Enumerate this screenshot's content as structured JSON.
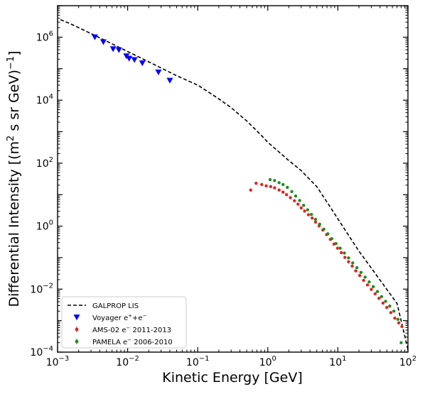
{
  "chart_data": {
    "type": "scatter",
    "xlabel": "Kinetic Energy [GeV]",
    "ylabel_parts": [
      "Differential Intensity [(m",
      "2",
      " s sr GeV)",
      "−1",
      "]"
    ],
    "x_scale": "log",
    "y_scale": "log",
    "xlim": [
      0.001,
      100
    ],
    "ylim": [
      0.0001,
      10000000
    ],
    "grid": false,
    "legend_position": "lower-left",
    "x_ticks": [
      {
        "value": 0.001,
        "base": "10",
        "exp": "−3"
      },
      {
        "value": 0.01,
        "base": "10",
        "exp": "−2"
      },
      {
        "value": 0.1,
        "base": "10",
        "exp": "−1"
      },
      {
        "value": 1,
        "base": "10",
        "exp": "0"
      },
      {
        "value": 10,
        "base": "10",
        "exp": "1"
      },
      {
        "value": 100,
        "base": "10",
        "exp": "2"
      }
    ],
    "y_ticks": [
      {
        "value": 0.0001,
        "base": "10",
        "exp": "−4"
      },
      {
        "value": 0.01,
        "base": "10",
        "exp": "−2"
      },
      {
        "value": 1,
        "base": "10",
        "exp": "0"
      },
      {
        "value": 100,
        "base": "10",
        "exp": "2"
      },
      {
        "value": 10000,
        "base": "10",
        "exp": "4"
      },
      {
        "value": 1000000,
        "base": "10",
        "exp": "6"
      }
    ],
    "series": [
      {
        "name": "GALPROP LIS",
        "kind": "line",
        "style": "dashed",
        "color": "#000000",
        "points": [
          [
            0.0011,
            3600000
          ],
          [
            0.0015,
            2700000
          ],
          [
            0.002,
            2000000
          ],
          [
            0.003,
            1300000
          ],
          [
            0.005,
            750000
          ],
          [
            0.01,
            350000
          ],
          [
            0.02,
            165000
          ],
          [
            0.05,
            60000
          ],
          [
            0.1,
            30000
          ],
          [
            0.2,
            11000
          ],
          [
            0.3,
            5800
          ],
          [
            0.5,
            2200
          ],
          [
            0.8,
            780
          ],
          [
            1.0,
            460
          ],
          [
            1.5,
            210
          ],
          [
            2,
            120
          ],
          [
            3,
            58
          ],
          [
            5,
            18
          ],
          [
            8,
            3.7
          ],
          [
            10,
            1.7
          ],
          [
            20,
            0.16
          ],
          [
            30,
            0.047
          ],
          [
            50,
            0.0098
          ],
          [
            70,
            0.0035
          ],
          [
            100,
            0.00012
          ]
        ]
      },
      {
        "name": "Voyager e⁺+e⁻",
        "name_parts": [
          "Voyager e",
          "+",
          "+e",
          "−"
        ],
        "kind": "marker",
        "marker": "triangle-down",
        "color": "#0000ff",
        "points": [
          [
            0.0034,
            1000000
          ],
          [
            0.0045,
            700000
          ],
          [
            0.0062,
            420000
          ],
          [
            0.0075,
            390000
          ],
          [
            0.0096,
            250000
          ],
          [
            0.0105,
            210000
          ],
          [
            0.0125,
            190000
          ],
          [
            0.0162,
            150000
          ],
          [
            0.0275,
            77000
          ],
          [
            0.04,
            42000
          ]
        ]
      },
      {
        "name": "AMS-02 e⁻ 2011-2013",
        "name_parts": [
          "AMS-02 e",
          "−",
          " 2011-2013"
        ],
        "kind": "marker",
        "marker": "circle",
        "color": "#e8201b",
        "points": [
          [
            0.57,
            14
          ],
          [
            0.68,
            23
          ],
          [
            0.82,
            21
          ],
          [
            0.95,
            19
          ],
          [
            1.1,
            18
          ],
          [
            1.25,
            16.5
          ],
          [
            1.45,
            14
          ],
          [
            1.65,
            12
          ],
          [
            1.85,
            10
          ],
          [
            2.1,
            8
          ],
          [
            2.4,
            6.4
          ],
          [
            2.7,
            5
          ],
          [
            3.0,
            3.8
          ],
          [
            3.35,
            3.0
          ],
          [
            3.8,
            2.3
          ],
          [
            4.3,
            1.8
          ],
          [
            4.8,
            1.35
          ],
          [
            5.4,
            1.02
          ],
          [
            6.1,
            0.75
          ],
          [
            6.9,
            0.54
          ],
          [
            7.8,
            0.38
          ],
          [
            8.8,
            0.27
          ],
          [
            9.9,
            0.2
          ],
          [
            11.2,
            0.144
          ],
          [
            12.6,
            0.102
          ],
          [
            14.2,
            0.074
          ],
          [
            16,
            0.054
          ],
          [
            18,
            0.038
          ],
          [
            20.5,
            0.027
          ],
          [
            23.3,
            0.019
          ],
          [
            26.5,
            0.0136
          ],
          [
            30,
            0.0098
          ],
          [
            34,
            0.0071
          ],
          [
            38.6,
            0.0051
          ],
          [
            44,
            0.0036
          ],
          [
            50,
            0.0026
          ],
          [
            57,
            0.0018
          ],
          [
            65,
            0.0012
          ],
          [
            74,
            0.00085
          ],
          [
            82,
            0.00065
          ]
        ]
      },
      {
        "name": "PAMELA e⁻  2006-2010",
        "name_parts": [
          "PAMELA e",
          "−",
          "  2006-2010"
        ],
        "kind": "marker",
        "marker": "circle",
        "color": "#1f8c1f",
        "points": [
          [
            1.08,
            30
          ],
          [
            1.25,
            28
          ],
          [
            1.45,
            24
          ],
          [
            1.65,
            21
          ],
          [
            1.9,
            17
          ],
          [
            2.2,
            12.5
          ],
          [
            2.5,
            9
          ],
          [
            2.85,
            6.5
          ],
          [
            3.25,
            4.6
          ],
          [
            3.7,
            3.3
          ],
          [
            4.2,
            2.35
          ],
          [
            4.8,
            1.65
          ],
          [
            5.5,
            1.15
          ],
          [
            6.3,
            0.8
          ],
          [
            7.2,
            0.57
          ],
          [
            8.2,
            0.4
          ],
          [
            9.4,
            0.28
          ],
          [
            10.8,
            0.2
          ],
          [
            12.4,
            0.14
          ],
          [
            14.2,
            0.098
          ],
          [
            16.3,
            0.068
          ],
          [
            18.7,
            0.048
          ],
          [
            21.4,
            0.034
          ],
          [
            24.5,
            0.024
          ],
          [
            28,
            0.017
          ],
          [
            32,
            0.012
          ],
          [
            36.7,
            0.0084
          ],
          [
            42,
            0.0058
          ],
          [
            48,
            0.0041
          ],
          [
            55,
            0.0029
          ],
          [
            63,
            0.002
          ],
          [
            72,
            0.0011
          ],
          [
            80,
            0.0002
          ]
        ]
      }
    ]
  }
}
